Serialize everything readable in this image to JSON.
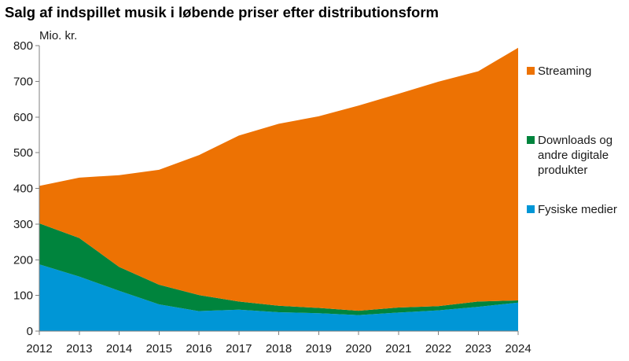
{
  "chart_data": {
    "type": "area",
    "stacked": true,
    "title": "Salg af indspillet musik i løbende priser efter distributionsform",
    "ylabel": "Mio. kr.",
    "xlabel": "",
    "ylim": [
      0,
      800
    ],
    "yticks": [
      "0",
      "100",
      "200",
      "300",
      "400",
      "500",
      "600",
      "700",
      "800"
    ],
    "categories": [
      "2012",
      "2013",
      "2014",
      "2015",
      "2016",
      "2017",
      "2018",
      "2019",
      "2020",
      "2021",
      "2022",
      "2023",
      "2024"
    ],
    "series": [
      {
        "name": "Fysiske medier",
        "color": "#0096d6",
        "values": [
          187,
          153,
          113,
          75,
          56,
          60,
          53,
          50,
          45,
          52,
          58,
          68,
          80
        ]
      },
      {
        "name": "Downloads og andre digitale produkter",
        "legend_lines": [
          "Downloads og",
          "andre digitale",
          "produkter"
        ],
        "color": "#00843d",
        "values": [
          115,
          108,
          67,
          55,
          45,
          23,
          18,
          15,
          12,
          14,
          12,
          15,
          6
        ]
      },
      {
        "name": "Streaming",
        "color": "#ed7203",
        "values": [
          105,
          169,
          257,
          322,
          392,
          465,
          510,
          537,
          575,
          599,
          629,
          645,
          708
        ]
      }
    ],
    "legend": {
      "position": "right",
      "order": [
        "Streaming",
        "Downloads og andre digitale produkter",
        "Fysiske medier"
      ]
    },
    "grid": false
  }
}
